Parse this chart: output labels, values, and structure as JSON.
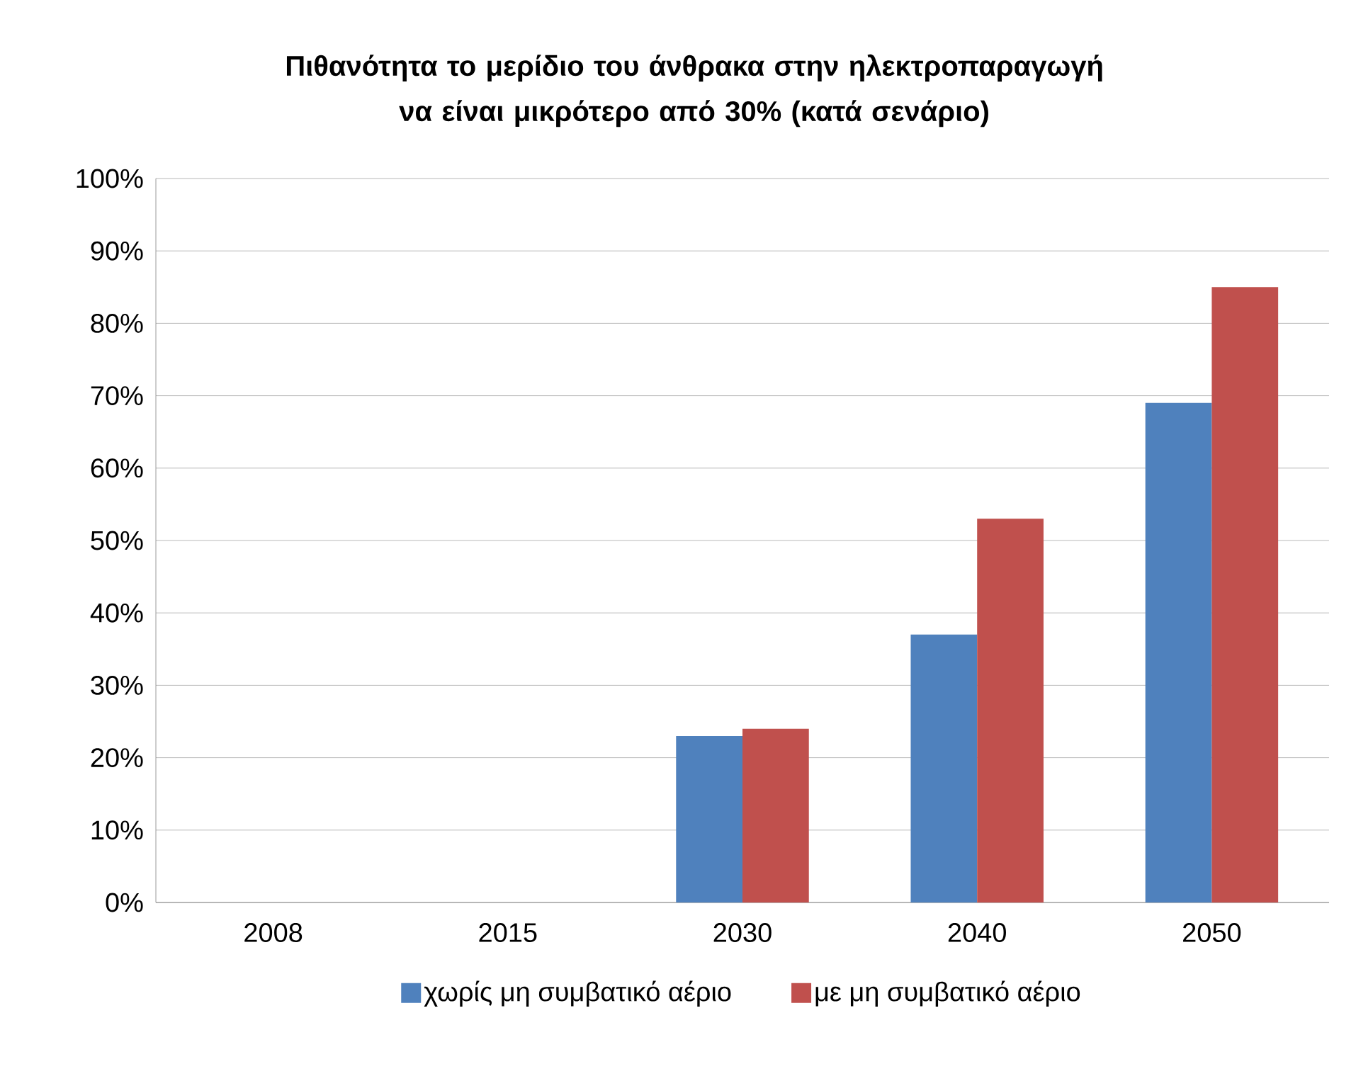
{
  "chart_data": {
    "type": "bar",
    "title": "Πιθανότητα το μερίδιο του άνθρακα στην ηλεκτροπαραγωγή να είναι μικρότερο από 30% (κατά σενάριο)",
    "categories": [
      "2008",
      "2015",
      "2030",
      "2040",
      "2050"
    ],
    "series": [
      {
        "name": "χωρίς μη συμβατικό αέριο",
        "color": "#4f81bd",
        "values": [
          0,
          0,
          23,
          37,
          69
        ]
      },
      {
        "name": "με μη συμβατικό αέριο",
        "color": "#c0504d",
        "values": [
          0,
          0,
          24,
          53,
          85
        ]
      }
    ],
    "ylim": [
      0,
      100
    ],
    "yticks": [
      {
        "value": 0,
        "label": "0%"
      },
      {
        "value": 10,
        "label": "10%"
      },
      {
        "value": 20,
        "label": "20%"
      },
      {
        "value": 30,
        "label": "30%"
      },
      {
        "value": 40,
        "label": "40%"
      },
      {
        "value": 50,
        "label": "50%"
      },
      {
        "value": 60,
        "label": "60%"
      },
      {
        "value": 70,
        "label": "70%"
      },
      {
        "value": 80,
        "label": "80%"
      },
      {
        "value": 90,
        "label": "90%"
      },
      {
        "value": 100,
        "label": "100%"
      }
    ],
    "grid": "y",
    "legend": "bottom"
  }
}
